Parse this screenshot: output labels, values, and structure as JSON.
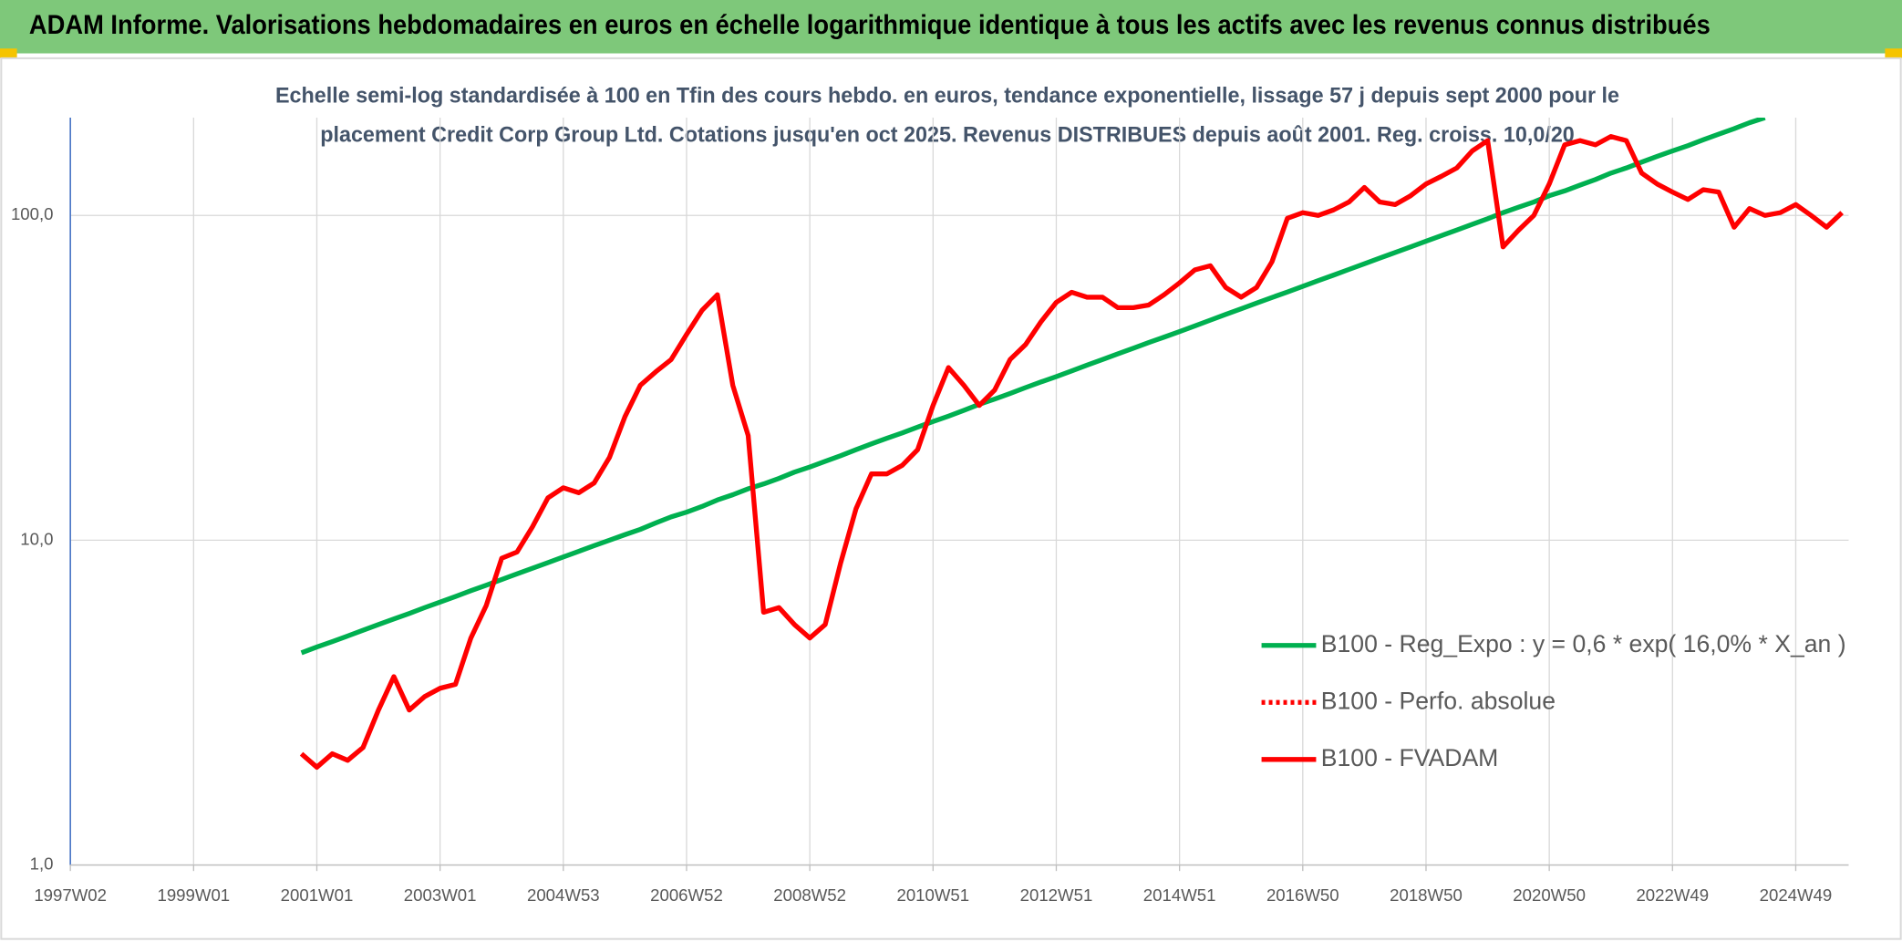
{
  "chart_data": {
    "type": "line",
    "title": "ADAM Informe. Valorisations hebdomadaires en euros en échelle logarithmique identique à tous les actifs avec les revenus connus distribués",
    "subtitle": [
      "Echelle semi-log standardisée à 100 en Tfin des cours hebdo. en euros, tendance exponentielle, lissage 57 j depuis sept 2000 pour le",
      "placement Credit Corp Group Ltd. Cotations jusqu'en oct 2025. Revenus DISTRIBUES depuis août 2001. Reg. croiss. 10,0/20"
    ],
    "log_scale": true,
    "grid": true,
    "legend": "lower right",
    "ylim": [
      1,
      200
    ],
    "yticks": [
      {
        "value": 1,
        "label": "1,0"
      },
      {
        "value": 10,
        "label": "10,0"
      },
      {
        "value": 100,
        "label": "100,0"
      }
    ],
    "categories": [
      "1997W02",
      null,
      null,
      null,
      null,
      null,
      null,
      null,
      "1999W01",
      null,
      null,
      null,
      null,
      null,
      null,
      null,
      "2001W01",
      null,
      null,
      null,
      null,
      null,
      null,
      null,
      "2003W01",
      null,
      null,
      null,
      null,
      null,
      null,
      null,
      "2004W53",
      null,
      null,
      null,
      null,
      null,
      null,
      null,
      "2006W52",
      null,
      null,
      null,
      null,
      null,
      null,
      null,
      "2008W52",
      null,
      null,
      null,
      null,
      null,
      null,
      null,
      "2010W51",
      null,
      null,
      null,
      null,
      null,
      null,
      null,
      "2012W51",
      null,
      null,
      null,
      null,
      null,
      null,
      null,
      "2014W51",
      null,
      null,
      null,
      null,
      null,
      null,
      null,
      "2016W50",
      null,
      null,
      null,
      null,
      null,
      null,
      null,
      "2018W50",
      null,
      null,
      null,
      null,
      null,
      null,
      null,
      "2020W50",
      null,
      null,
      null,
      null,
      null,
      null,
      null,
      "2022W49",
      null,
      null,
      null,
      null,
      null,
      null,
      null,
      "2024W49",
      null,
      null,
      null
    ],
    "series": [
      {
        "name": "B100 - Reg_Expo : y = 0,6 * exp( 16,0% *  X_an )",
        "color": "#00b050",
        "style": "solid",
        "values": [
          null,
          null,
          null,
          null,
          null,
          null,
          null,
          null,
          null,
          null,
          null,
          null,
          null,
          null,
          null,
          4.5,
          4.69,
          4.87,
          5.07,
          5.28,
          5.5,
          5.72,
          5.95,
          6.2,
          6.45,
          6.71,
          6.99,
          7.27,
          7.57,
          7.88,
          8.2,
          8.53,
          8.88,
          9.24,
          9.62,
          10.0,
          10.4,
          10.8,
          11.3,
          11.8,
          12.2,
          12.7,
          13.3,
          13.8,
          14.4,
          14.9,
          15.5,
          16.2,
          16.8,
          17.5,
          18.2,
          19.0,
          19.8,
          20.6,
          21.4,
          22.3,
          23.2,
          24.1,
          25.1,
          26.2,
          27.2,
          28.3,
          29.5,
          30.7,
          31.9,
          33.2,
          34.6,
          36.0,
          37.5,
          39.0,
          40.6,
          42.2,
          43.9,
          45.7,
          47.6,
          49.6,
          51.6,
          53.7,
          55.9,
          58.1,
          60.5,
          63.0,
          65.5,
          68.2,
          71.0,
          73.9,
          76.9,
          80.0,
          83.3,
          86.7,
          90.2,
          93.9,
          97.7,
          102,
          106,
          110,
          115,
          119,
          124,
          129,
          135,
          140,
          146,
          152,
          158,
          164,
          171,
          178,
          185,
          193,
          200,
          null,
          null,
          null,
          null,
          null
        ]
      },
      {
        "name": "B100 - Perfo. absolue",
        "color": "#ff0000",
        "style": "dotted",
        "values": [
          null,
          null,
          null,
          null,
          null,
          null,
          null,
          null,
          null,
          null,
          null,
          null,
          null,
          null,
          null,
          null,
          null,
          null,
          null,
          null,
          null,
          null,
          null,
          null,
          null,
          null,
          null,
          null,
          null,
          null,
          null,
          null,
          null,
          null,
          null,
          null,
          null,
          null,
          null,
          null,
          null,
          null,
          null,
          null,
          null,
          null,
          null,
          null,
          null,
          null,
          null,
          null,
          null,
          null,
          null,
          null,
          null,
          null,
          null,
          null,
          null,
          null,
          null,
          null,
          null,
          null,
          null,
          null,
          null,
          null,
          null,
          null,
          null,
          null,
          null,
          null,
          null,
          null,
          null,
          null,
          null,
          null,
          null,
          null,
          null,
          null,
          null,
          null,
          null,
          null,
          null,
          null,
          null,
          null,
          null,
          null,
          null,
          null,
          null,
          null,
          null,
          null,
          null,
          null,
          null,
          null,
          null,
          null,
          null,
          null,
          null,
          null,
          null,
          null,
          null,
          null
        ]
      },
      {
        "name": "B100 - FVADAM",
        "color": "#ff0000",
        "style": "solid",
        "values": [
          null,
          null,
          null,
          null,
          null,
          null,
          null,
          null,
          null,
          null,
          null,
          null,
          null,
          null,
          null,
          2.2,
          2.0,
          2.2,
          2.1,
          2.3,
          3.0,
          3.8,
          3.0,
          3.3,
          3.5,
          3.6,
          5.0,
          6.3,
          8.8,
          9.2,
          11,
          13.5,
          14.5,
          14,
          15,
          18,
          24,
          30,
          33,
          36,
          43,
          51,
          57,
          30,
          21,
          6.0,
          6.2,
          5.5,
          5.0,
          5.5,
          8.5,
          12.5,
          16,
          16,
          17,
          19,
          26,
          34,
          30,
          26,
          29,
          36,
          40,
          47,
          54,
          58,
          56,
          56,
          52,
          52,
          53,
          57,
          62,
          68,
          70,
          60,
          56,
          60,
          72,
          98,
          102,
          100,
          104,
          110,
          122,
          110,
          108,
          115,
          125,
          132,
          140,
          158,
          170,
          80,
          90,
          100,
          125,
          165,
          170,
          165,
          175,
          170,
          135,
          125,
          118,
          112,
          120,
          118,
          92,
          105,
          100,
          102,
          108,
          100,
          92,
          102
        ]
      }
    ]
  }
}
